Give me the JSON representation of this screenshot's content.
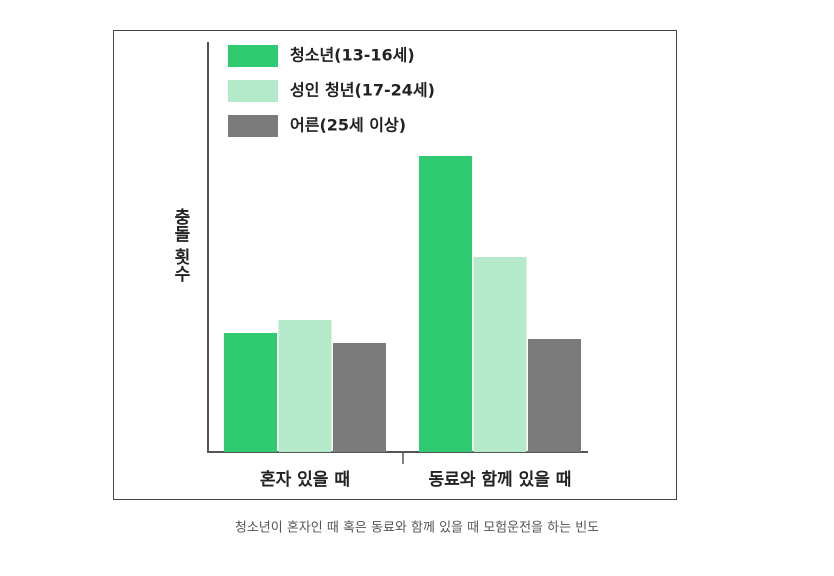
{
  "chart_data": {
    "type": "bar",
    "y_label": "충돌 횟수",
    "categories": [
      "혼자 있을 때",
      "동료와 함께 있을 때"
    ],
    "series": [
      {
        "name": "청소년(13-16세)",
        "color": "#2ecb71",
        "values": [
          119,
          296
        ]
      },
      {
        "name": "성인 청년(17-24세)",
        "color": "#b4e9c9",
        "values": [
          132,
          195
        ]
      },
      {
        "name": "어른(25세 이상)",
        "color": "#7b7b7b",
        "values": [
          109,
          113
        ]
      }
    ],
    "ylim": [
      0,
      410
    ],
    "legend": "upper-left"
  },
  "caption": "청소년이 혼자인 때 혹은 동료와 함께 있을 때 모험운전을 하는 빈도"
}
